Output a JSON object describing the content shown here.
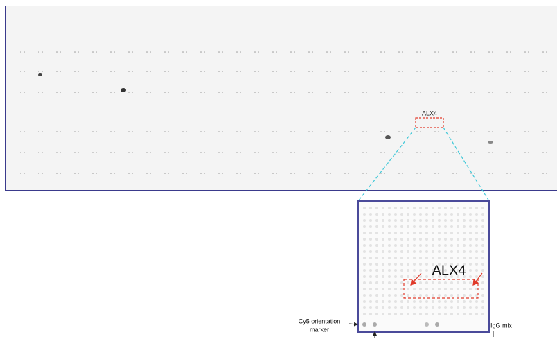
{
  "overview_label": "ALX4",
  "zoom_label": "ALX4",
  "cy5_label": [
    "Cy5 orientation",
    "marker"
  ],
  "igg_label": "IgG mix"
}
